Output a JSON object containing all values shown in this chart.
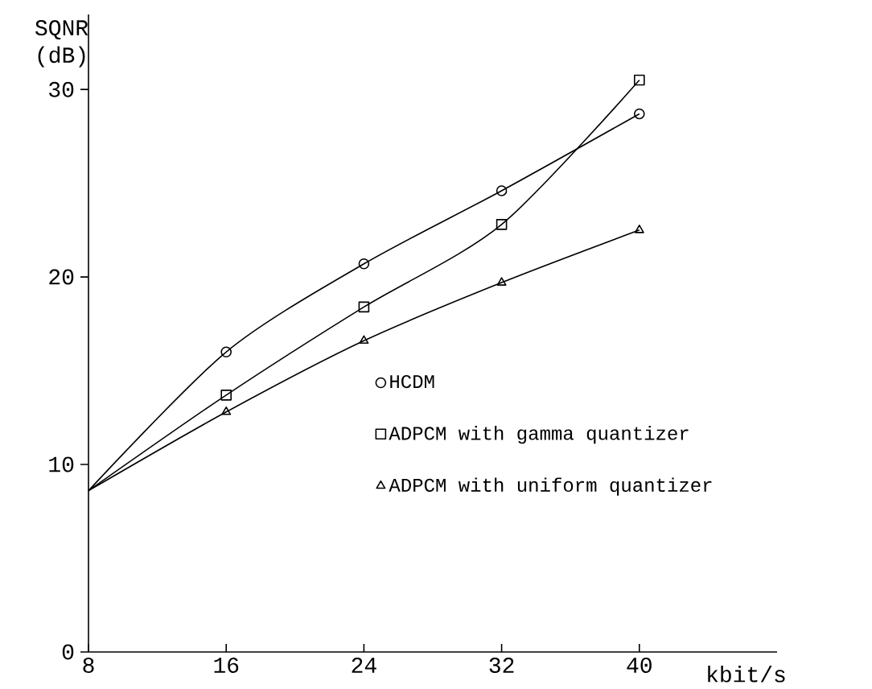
{
  "chart_data": {
    "type": "line",
    "xlabel": "kbit/s",
    "ylabel": "SQNR (dB)",
    "xlim": [
      8,
      48
    ],
    "xticks": [
      8,
      16,
      24,
      32,
      40
    ],
    "ylim": [
      0,
      34
    ],
    "yticks": [
      0,
      10,
      20,
      30
    ],
    "grid": false,
    "legend": "right",
    "line_style": "solid",
    "series": [
      {
        "name": "HCDM",
        "color": "#000000",
        "marker": "circle",
        "x": [
          8,
          16,
          24,
          32,
          40
        ],
        "values": [
          8.6,
          16.0,
          20.7,
          24.6,
          28.7
        ]
      },
      {
        "name": "ADPCM with gamma quantizer",
        "color": "#000000",
        "marker": "square",
        "x": [
          8,
          16,
          24,
          32,
          40
        ],
        "values": [
          8.6,
          13.7,
          18.4,
          22.8,
          30.5
        ]
      },
      {
        "name": "ADPCM with uniform quantizer",
        "color": "#000000",
        "marker": "triangle",
        "x": [
          8,
          16,
          24,
          32,
          40
        ],
        "values": [
          8.6,
          12.8,
          16.6,
          19.7,
          22.5
        ]
      }
    ]
  }
}
